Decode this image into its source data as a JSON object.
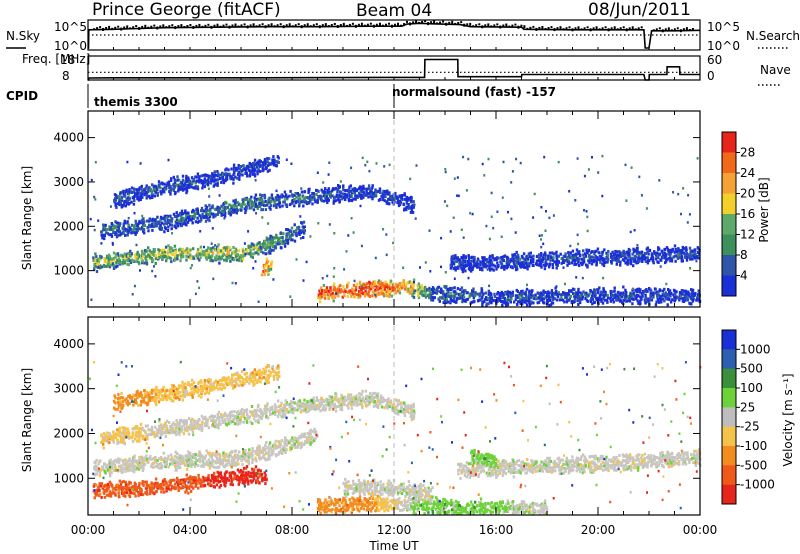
{
  "header": {
    "station": "Prince George (fitACF)",
    "beam": "Beam 04",
    "date": "08/Jun/2011"
  },
  "colors": {
    "power_scale": [
      "#1a2fd6",
      "#2f55a8",
      "#3d8f5c",
      "#5ca96a",
      "#f2cf2a",
      "#f4a234",
      "#f06a1a",
      "#e8251a"
    ],
    "velocity_scale": [
      "#1a2fd6",
      "#2c5fb0",
      "#3a8f3a",
      "#6dd23a",
      "#bdbdbd",
      "#f5c24a",
      "#f28c1e",
      "#ef5a1a",
      "#e8251a"
    ],
    "ground_scatter": "#c9c6c0",
    "line": "#000000"
  },
  "chart_data": [
    {
      "type": "line",
      "panel": "noise",
      "ylabel_left": "N.Sky",
      "ylabel_right": "N.Search",
      "yticks_left": [
        "10^5",
        "10^0"
      ],
      "yticks_right": [
        "10^5",
        "10^0"
      ],
      "series": [
        {
          "name": "N.Sky",
          "style": "solid",
          "x": [
            0,
            0.02,
            0.03,
            1,
            3,
            5,
            7,
            9,
            11,
            12.3,
            12.5,
            13.0,
            13.5,
            14.6,
            15,
            17,
            17.1,
            19,
            21.5,
            21.8,
            21.85,
            22,
            22.1,
            23,
            24
          ],
          "y": [
            0.0,
            0.0,
            0.7,
            0.72,
            0.78,
            0.8,
            0.82,
            0.82,
            0.84,
            0.84,
            0.92,
            0.95,
            0.93,
            0.9,
            0.82,
            0.8,
            0.72,
            0.7,
            0.7,
            0.7,
            0.0,
            0.0,
            0.66,
            0.66,
            0.68
          ]
        },
        {
          "name": "N.Search",
          "style": "dotted",
          "x": [
            0,
            24
          ],
          "y": [
            0.5,
            0.5
          ]
        }
      ]
    },
    {
      "type": "line",
      "panel": "frequency",
      "ylabel_left": "Freq. [MHz]",
      "ylabel_right": "Nave",
      "yticks_left": [
        "18",
        "8"
      ],
      "yticks_right": [
        "60",
        "0"
      ],
      "series": [
        {
          "name": "Freq.",
          "style": "solid",
          "x": [
            0,
            0.02,
            0.03,
            1,
            6,
            12,
            13.2,
            13.21,
            14.5,
            14.51,
            17,
            17.01,
            19,
            21.8,
            21.85,
            22,
            22.01,
            22.7,
            22.71,
            23.2,
            23.21,
            24
          ],
          "y": [
            8,
            8,
            8.9,
            9.0,
            9.0,
            9.2,
            9.2,
            17.3,
            17.3,
            9.5,
            9.5,
            10.5,
            10.5,
            10.5,
            8,
            8,
            10.5,
            10.5,
            14,
            14,
            10.5,
            10.5
          ]
        },
        {
          "name": "Nave",
          "style": "dotted",
          "x": [
            0,
            24
          ],
          "y": [
            11.5,
            11.5
          ]
        }
      ]
    },
    {
      "type": "table",
      "panel": "cpid",
      "label": "CPID",
      "entries": [
        {
          "time": 0,
          "text": "themis 3300"
        },
        {
          "time": 12,
          "text": "normalsound (fast) -157"
        }
      ]
    },
    {
      "type": "heatmap",
      "panel": "power",
      "xlabel": "",
      "ylabel": "Slant Range [km]",
      "xlim": [
        0,
        24
      ],
      "ylim": [
        180,
        4600
      ],
      "yticks": [
        1000,
        2000,
        3000,
        4000
      ],
      "colorbar": {
        "label": "Power [dB]",
        "ticks": [
          "28",
          "24",
          "20",
          "16",
          "12",
          "8",
          "4"
        ]
      },
      "echo_bands": [
        {
          "name": "band-1",
          "points": [
            [
              0.2,
              1200,
              0.45
            ],
            [
              3,
              1400,
              0.5
            ],
            [
              6,
              1400,
              0.55
            ],
            [
              7.5,
              1700,
              0.35
            ],
            [
              8.5,
              2000,
              0.2
            ]
          ]
        },
        {
          "name": "band-2",
          "points": [
            [
              0.5,
              1900,
              0.25
            ],
            [
              3,
              2100,
              0.2
            ],
            [
              6,
              2500,
              0.3
            ],
            [
              9,
              2700,
              0.2
            ],
            [
              11,
              2800,
              0.15
            ],
            [
              12.8,
              2500,
              0.1
            ]
          ]
        },
        {
          "name": "band-3",
          "points": [
            [
              1.0,
              2600,
              0.15
            ],
            [
              3,
              2900,
              0.2
            ],
            [
              5,
              3100,
              0.15
            ],
            [
              7.5,
              3500,
              0.1
            ]
          ]
        },
        {
          "name": "band-4",
          "points": [
            [
              9,
              500,
              0.85
            ],
            [
              11,
              600,
              0.95
            ],
            [
              12.5,
              650,
              0.75
            ],
            [
              13.5,
              500,
              0.3
            ],
            [
              16,
              400,
              0.15
            ],
            [
              20,
              450,
              0.15
            ],
            [
              24,
              450,
              0.15
            ]
          ]
        },
        {
          "name": "band-5",
          "points": [
            [
              14.2,
              1200,
              0.15
            ],
            [
              16,
              1200,
              0.1
            ],
            [
              19,
              1300,
              0.15
            ],
            [
              22,
              1350,
              0.15
            ],
            [
              24,
              1400,
              0.1
            ]
          ]
        },
        {
          "name": "band-6",
          "points": [
            [
              6.8,
              1000,
              0.85
            ],
            [
              7.2,
              1200,
              0.6
            ]
          ]
        }
      ]
    },
    {
      "type": "heatmap",
      "panel": "velocity",
      "xlabel": "Time UT",
      "ylabel": "Slant Range [km]",
      "xlim": [
        0,
        24
      ],
      "ylim": [
        180,
        4600
      ],
      "xticks": [
        "00:00",
        "04:00",
        "08:00",
        "12:00",
        "16:00",
        "20:00",
        "00:00"
      ],
      "yticks": [
        1000,
        2000,
        3000,
        4000
      ],
      "colorbar": {
        "label": "Velocity [m s⁻¹]",
        "ticks": [
          "1000",
          "500",
          "100",
          "25",
          "-25",
          "-100",
          "-500",
          "-1000"
        ]
      },
      "echo_bands": [
        {
          "name": "band-1",
          "points": [
            [
              0.2,
              1250,
              4
            ],
            [
              3,
              1400,
              4
            ],
            [
              6,
              1450,
              4
            ],
            [
              8,
              1800,
              4
            ],
            [
              9,
              2000,
              4
            ]
          ]
        },
        {
          "name": "band-2",
          "points": [
            [
              0.5,
              1900,
              5
            ],
            [
              4,
              2200,
              4
            ],
            [
              8,
              2600,
              4
            ],
            [
              11,
              2800,
              4
            ],
            [
              12.8,
              2500,
              4
            ]
          ]
        },
        {
          "name": "band-3",
          "points": [
            [
              1.0,
              2700,
              6
            ],
            [
              4,
              3000,
              5
            ],
            [
              7.5,
              3400,
              5
            ]
          ]
        },
        {
          "name": "band-4",
          "points": [
            [
              0.2,
              750,
              7
            ],
            [
              2.5,
              800,
              7
            ],
            [
              6.5,
              1100,
              8
            ],
            [
              7.0,
              1000,
              8
            ]
          ]
        },
        {
          "name": "band-5",
          "points": [
            [
              9,
              400,
              6
            ],
            [
              11,
              450,
              6
            ],
            [
              13,
              400,
              3
            ],
            [
              15,
              350,
              3
            ],
            [
              18,
              350,
              4
            ]
          ]
        },
        {
          "name": "band-6",
          "points": [
            [
              10,
              800,
              4
            ],
            [
              12,
              800,
              4
            ],
            [
              13.5,
              650,
              4
            ]
          ]
        },
        {
          "name": "band-7",
          "points": [
            [
              14.5,
              1200,
              4
            ],
            [
              18,
              1300,
              4
            ],
            [
              22,
              1400,
              4
            ],
            [
              24,
              1500,
              4
            ]
          ]
        },
        {
          "name": "band-8",
          "points": [
            [
              15,
              1500,
              3
            ],
            [
              16,
              1400,
              3
            ]
          ]
        }
      ]
    }
  ]
}
